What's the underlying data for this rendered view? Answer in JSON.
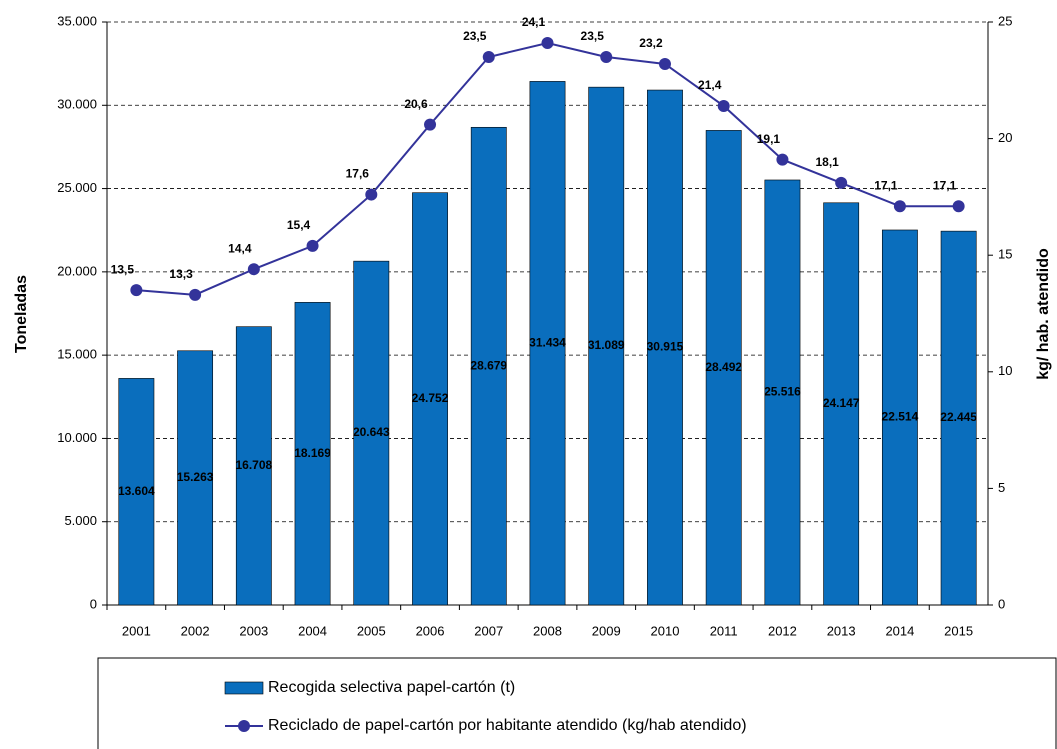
{
  "chart_data": {
    "type": "bar",
    "y_label": "Toneladas",
    "y2_label": "kg/ hab. atendido",
    "categories": [
      "2001",
      "2002",
      "2003",
      "2004",
      "2005",
      "2006",
      "2007",
      "2008",
      "2009",
      "2010",
      "2011",
      "2012",
      "2013",
      "2014",
      "2015"
    ],
    "series": [
      {
        "name": "Recogida selectiva papel-cartón (t)",
        "type": "bar",
        "color": "#0a6ebd",
        "values": [
          13604,
          15263,
          16708,
          18169,
          20643,
          24752,
          28679,
          31434,
          31089,
          30915,
          28492,
          25516,
          24147,
          22514,
          22445
        ],
        "value_labels": [
          "13.604",
          "15.263",
          "16.708",
          "18.169",
          "20.643",
          "24.752",
          "28.679",
          "31.434",
          "31.089",
          "30.915",
          "28.492",
          "25.516",
          "24.147",
          "22.514",
          "22.445"
        ]
      },
      {
        "name": "Reciclado de papel-cartón por habitante atendido (kg/hab atendido)",
        "type": "line",
        "axis": "y2",
        "color": "#33339a",
        "values": [
          13.5,
          13.3,
          14.4,
          15.4,
          17.6,
          20.6,
          23.5,
          24.1,
          23.5,
          23.2,
          21.4,
          19.1,
          18.1,
          17.1,
          17.1
        ],
        "value_labels": [
          "13,5",
          "13,3",
          "14,4",
          "15,4",
          "17,6",
          "20,6",
          "23,5",
          "24,1",
          "23,5",
          "23,2",
          "21,4",
          "19,1",
          "18,1",
          "17,1",
          "17,1"
        ]
      }
    ],
    "ylim": [
      0,
      35000
    ],
    "yticks": [
      0,
      {
        "value": 5000,
        "label": "5.000"
      },
      {
        "value": 10000,
        "label": "10.000"
      },
      {
        "value": 15000,
        "label": "15.000"
      },
      {
        "value": 20000,
        "label": "20.000"
      },
      {
        "value": 25000,
        "label": "25.000"
      },
      {
        "value": 30000,
        "label": "30.000"
      },
      {
        "value": 35000,
        "label": "35.000"
      }
    ],
    "y2lim": [
      0,
      25
    ],
    "y2ticks": [
      0,
      5,
      10,
      15,
      20,
      25
    ],
    "grid": true,
    "legend": "bottom"
  }
}
